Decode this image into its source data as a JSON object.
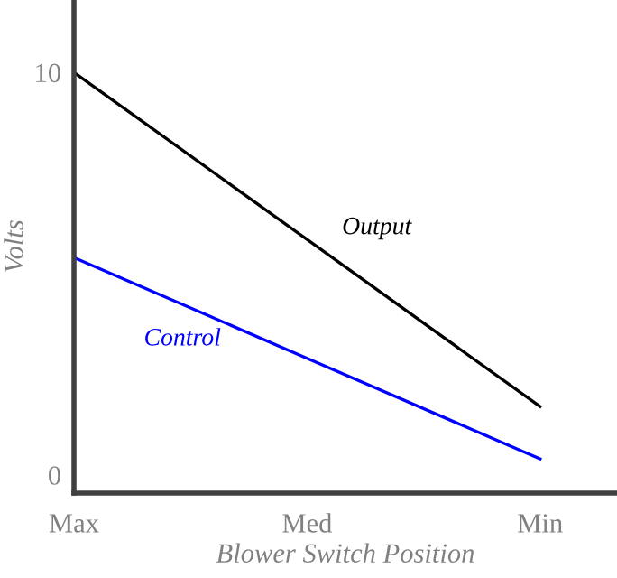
{
  "chart_data": {
    "type": "line",
    "xlabel": "Blower Switch Position",
    "ylabel": "Volts",
    "categories": [
      "Max",
      "Med",
      "Min"
    ],
    "series": [
      {
        "name": "Output",
        "color": "#000000",
        "values": [
          10,
          5.85,
          1.7
        ]
      },
      {
        "name": "Control",
        "color": "#0000ff",
        "values": [
          5.4,
          2.9,
          0.4
        ]
      }
    ],
    "ylim": [
      -0.45,
      11.8
    ],
    "yticks": [
      0,
      10
    ],
    "grid": false,
    "legend": false,
    "marker": "none",
    "line_style": "solid"
  }
}
